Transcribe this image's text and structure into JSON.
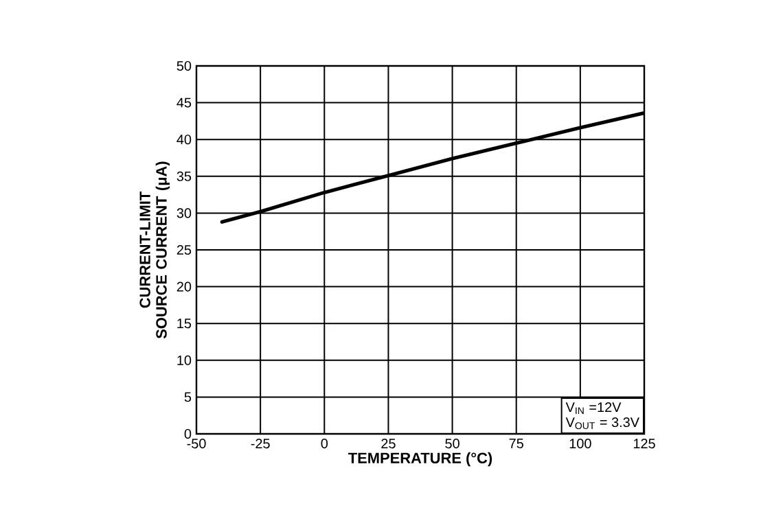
{
  "chart_data": {
    "type": "line",
    "xlabel": "TEMPERATURE (°C)",
    "ylabel": "CURRENT-LIMIT SOURCE CURRENT  (μA)",
    "x": [
      -40,
      -25,
      0,
      25,
      50,
      75,
      100,
      125
    ],
    "series": [
      {
        "color": "#000000",
        "values": [
          28.8,
          30.2,
          32.8,
          35.1,
          37.4,
          39.5,
          41.6,
          43.6
        ]
      }
    ],
    "xlim": [
      -50,
      125
    ],
    "ylim": [
      0,
      50
    ],
    "xticks": [
      -50,
      -25,
      0,
      25,
      50,
      75,
      100,
      125
    ],
    "yticks": [
      0,
      5,
      10,
      15,
      20,
      25,
      30,
      35,
      40,
      45,
      50
    ],
    "grid": true,
    "marker": "none",
    "line_style": "solid",
    "annotations": [
      "V$_{IN}$ =12V",
      "V$_{OUT}$ = 3.3V"
    ]
  }
}
